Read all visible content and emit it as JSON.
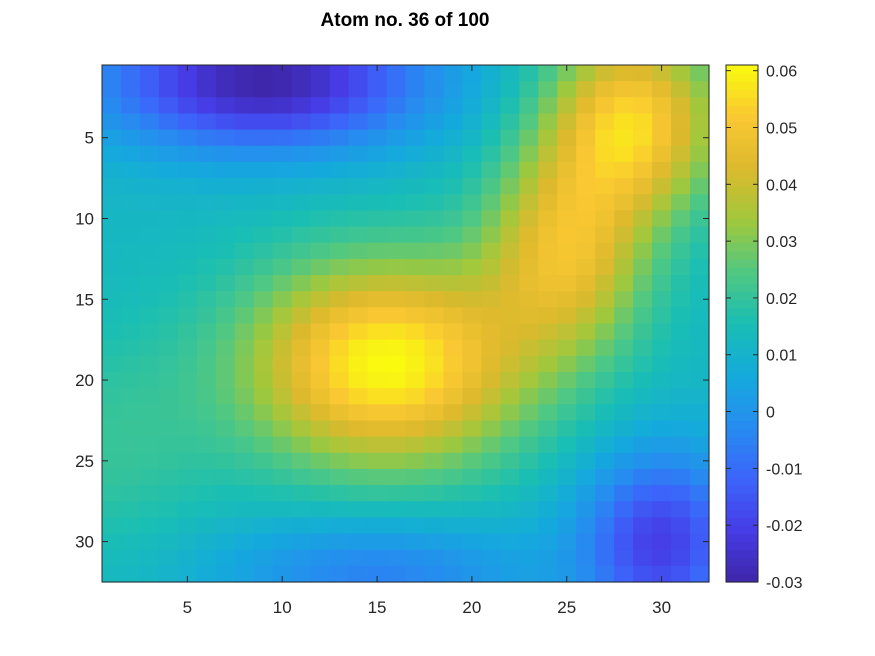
{
  "chart_data": {
    "type": "heatmap",
    "title": "Atom no. 36 of 100",
    "xlabel": "",
    "ylabel": "",
    "grid": false,
    "colormap": "parula",
    "n_cols": 32,
    "n_rows": 32,
    "x_ticks": [
      5,
      10,
      15,
      20,
      25,
      30
    ],
    "y_ticks": [
      5,
      10,
      15,
      20,
      25,
      30
    ],
    "x_range": [
      0.5,
      32.5
    ],
    "y_range": [
      0.5,
      32.5
    ],
    "y_direction": "reverse",
    "clim": [
      -0.03,
      0.061
    ],
    "colorbar": {
      "location": "right",
      "ticks": [
        0.06,
        0.05,
        0.04,
        0.03,
        0.02,
        0.01,
        0,
        -0.01,
        -0.02,
        -0.03
      ],
      "tick_labels": [
        "0.06",
        "0.05",
        "0.04",
        "0.03",
        "0.02",
        "0.01",
        "0",
        "-0.01",
        "-0.02",
        "-0.03"
      ]
    },
    "features": [
      {
        "x": 15.5,
        "y": 19,
        "sx": 5.2,
        "sy": 4.5,
        "amp": 0.061
      },
      {
        "x": 28.5,
        "y": 4,
        "sx": 3.2,
        "sy": 4.0,
        "amp": 0.053
      },
      {
        "x": 25,
        "y": 12,
        "sx": 3.0,
        "sy": 4.5,
        "amp": 0.045
      },
      {
        "x": 9,
        "y": 1.5,
        "sx": 6,
        "sy": 3,
        "amp": -0.03
      },
      {
        "x": 30,
        "y": 30,
        "sx": 3,
        "sy": 4,
        "amp": -0.02
      },
      {
        "x": 1,
        "y": 24,
        "sx": 4,
        "sy": 5,
        "amp": 0.02
      },
      {
        "x": 15,
        "y": 32,
        "sx": 6,
        "sy": 2.5,
        "amp": -0.005
      }
    ],
    "baseline": 0.012
  }
}
